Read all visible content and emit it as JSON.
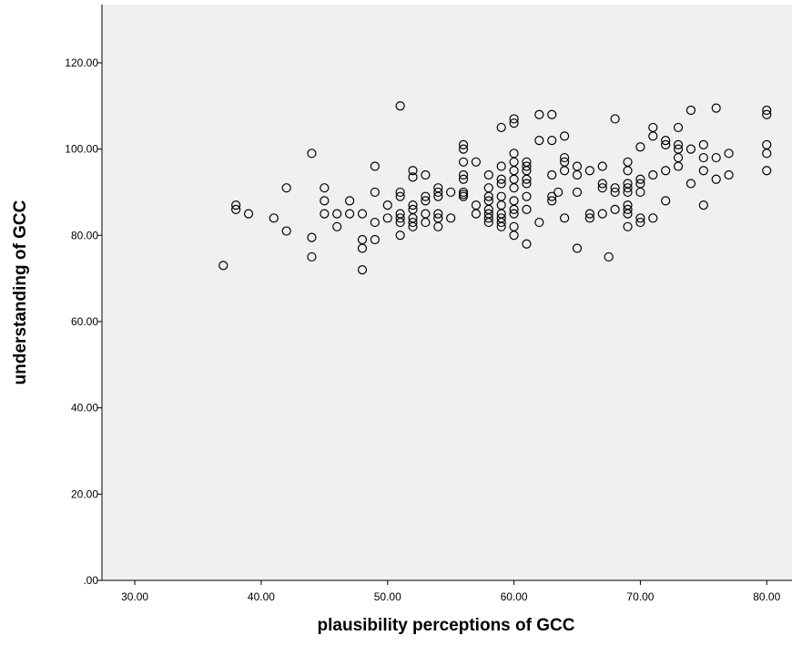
{
  "chart_data": {
    "type": "scatter",
    "x_label": "plausibility perceptions of GCC",
    "y_label": "understanding of GCC",
    "color": "#000000",
    "background": "#f0f0f0",
    "xlim": [
      27.4,
      82.0
    ],
    "ylim": [
      0,
      133.5
    ],
    "xticks": [
      {
        "value": 30,
        "label": "30.00"
      },
      {
        "value": 40,
        "label": "40.00"
      },
      {
        "value": 50,
        "label": "50.00"
      },
      {
        "value": 60,
        "label": "60.00"
      },
      {
        "value": 70,
        "label": "70.00"
      },
      {
        "value": 80,
        "label": "80.00"
      }
    ],
    "yticks": [
      {
        "value": 0,
        "label": ".00"
      },
      {
        "value": 20,
        "label": "20.00"
      },
      {
        "value": 40,
        "label": "40.00"
      },
      {
        "value": 60,
        "label": "60.00"
      },
      {
        "value": 80,
        "label": "80.00"
      },
      {
        "value": 100,
        "label": "100.00"
      },
      {
        "value": 120,
        "label": "120.00"
      }
    ],
    "x": [
      37,
      38,
      38,
      39,
      41,
      42,
      42,
      44,
      44,
      44,
      45,
      45,
      45,
      46,
      46,
      47,
      47,
      48,
      48,
      48,
      48,
      49,
      49,
      49,
      49,
      50,
      50,
      51,
      51,
      51,
      51,
      51,
      51,
      51,
      52,
      52,
      52,
      52,
      52,
      52,
      52,
      53,
      53,
      53,
      53,
      53,
      54,
      54,
      54,
      54,
      54,
      54,
      55,
      55,
      56,
      56,
      56,
      56,
      56,
      56,
      56,
      56,
      57,
      57,
      57,
      58,
      58,
      58,
      58,
      58,
      58,
      58,
      58,
      59,
      59,
      59,
      59,
      59,
      59,
      59,
      59,
      59,
      59,
      60,
      60,
      60,
      60,
      60,
      60,
      60,
      60,
      60,
      60,
      60,
      60,
      61,
      61,
      61,
      61,
      61,
      61,
      61,
      61,
      62,
      62,
      62,
      63,
      63,
      63,
      63,
      63,
      63.5,
      64,
      64,
      64,
      64,
      64,
      65,
      65,
      65,
      65,
      66,
      66,
      66,
      67,
      67,
      67,
      67,
      67.5,
      68,
      68,
      68,
      68,
      69,
      69,
      69,
      69,
      69,
      69,
      69,
      69,
      69,
      70,
      70,
      70,
      70,
      70,
      70,
      71,
      71,
      71,
      71,
      72,
      72,
      72,
      72,
      73,
      73,
      73,
      73,
      73,
      74,
      74,
      74,
      75,
      75,
      75,
      75,
      76,
      76,
      76,
      77,
      77,
      80,
      80,
      80,
      80,
      80
    ],
    "values": [
      73,
      87,
      86,
      85,
      84,
      91,
      81,
      99,
      79.5,
      75,
      91,
      88,
      85,
      85,
      82,
      88,
      85,
      85,
      79,
      77,
      72,
      96,
      90,
      83,
      79,
      84,
      87,
      110,
      90,
      89,
      85,
      84,
      83,
      80,
      95,
      93.5,
      87,
      86,
      84,
      83,
      82,
      94,
      89,
      88,
      85,
      83,
      91,
      90,
      89,
      85,
      84,
      82,
      90,
      84,
      101,
      100,
      97,
      94,
      93,
      90,
      89.5,
      89,
      97,
      87,
      85,
      94,
      91,
      89,
      88,
      86,
      85,
      84,
      83,
      105,
      96,
      93,
      92,
      89,
      87,
      85,
      84,
      83,
      82,
      107,
      106,
      99,
      97,
      95,
      93,
      91,
      88,
      86,
      85,
      82,
      80,
      97,
      96,
      95,
      93,
      92,
      89,
      86,
      78,
      108,
      102,
      83,
      108,
      102,
      94,
      89,
      88,
      90,
      103,
      98,
      97,
      95,
      84,
      96,
      94,
      90,
      77,
      95,
      85,
      84,
      96,
      92,
      91,
      85,
      75,
      107,
      91,
      90,
      86,
      97,
      95,
      92,
      91,
      90,
      87,
      86,
      85,
      82,
      100.5,
      93,
      92,
      90,
      84,
      83,
      105,
      103,
      94,
      84,
      102,
      101,
      95,
      88,
      105,
      101,
      100,
      98,
      96,
      109,
      100,
      92,
      101,
      98,
      95,
      87,
      109.5,
      98,
      93,
      99,
      94,
      109,
      108,
      101,
      99,
      95
    ]
  }
}
